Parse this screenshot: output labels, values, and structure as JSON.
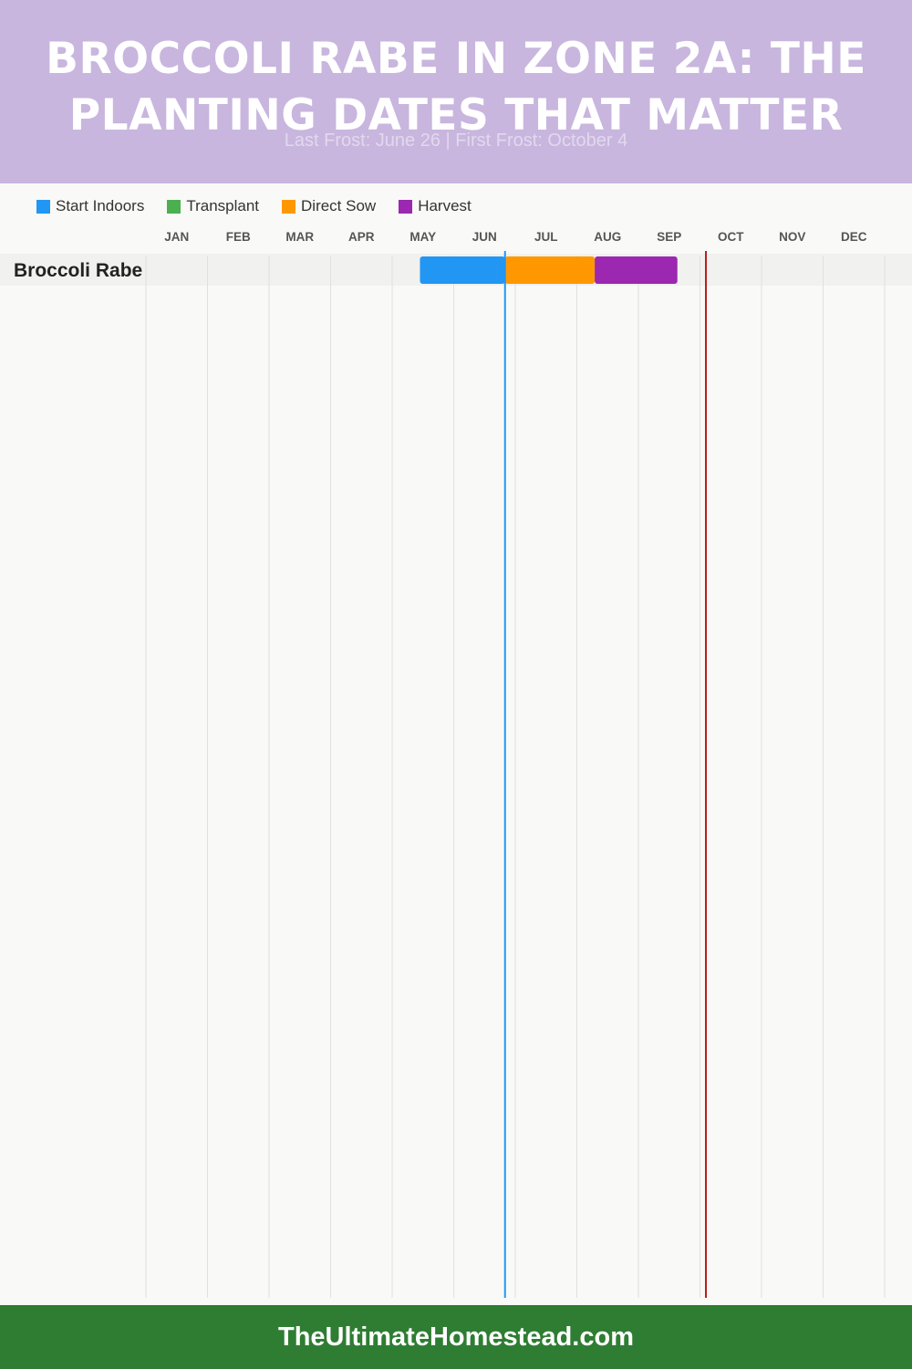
{
  "header": {
    "title": "Broccoli Rabe in Zone 2A: The Planting Dates That Matter",
    "subtitle": "Last Frost: June 26 | First Frost: October 4",
    "background": "#c8b6de",
    "subtitle_color": "#e2d8ee"
  },
  "legend": {
    "items": [
      {
        "label": "Start Indoors",
        "color": "#2196f3"
      },
      {
        "label": "Transplant",
        "color": "#4caf50"
      },
      {
        "label": "Direct Sow",
        "color": "#ff9800"
      },
      {
        "label": "Harvest",
        "color": "#9c27b0"
      }
    ]
  },
  "chart_data": {
    "type": "gantt",
    "months": [
      "JAN",
      "FEB",
      "MAR",
      "APR",
      "MAY",
      "JUN",
      "JUL",
      "AUG",
      "SEP",
      "OCT",
      "NOV",
      "DEC"
    ],
    "rows": [
      {
        "crop": "Broccoli Rabe",
        "bars": [
          {
            "activity": "Start Indoors",
            "start": "May 15",
            "end": "Jun 26",
            "color": "#2196f3"
          },
          {
            "activity": "Direct Sow",
            "start": "Jun 26",
            "end": "Aug 10",
            "color": "#ff9800"
          },
          {
            "activity": "Harvest",
            "start": "Aug 10",
            "end": "Sep 20",
            "color": "#9c27b0"
          }
        ]
      }
    ],
    "markers": [
      {
        "name": "Last Frost",
        "date": "Jun 26",
        "color": "#2196f3"
      },
      {
        "name": "First Frost",
        "date": "Oct 4",
        "color": "#b71c1c"
      }
    ]
  },
  "footer": {
    "text": "TheUltimateHomestead.com",
    "background": "#2e7d32"
  }
}
